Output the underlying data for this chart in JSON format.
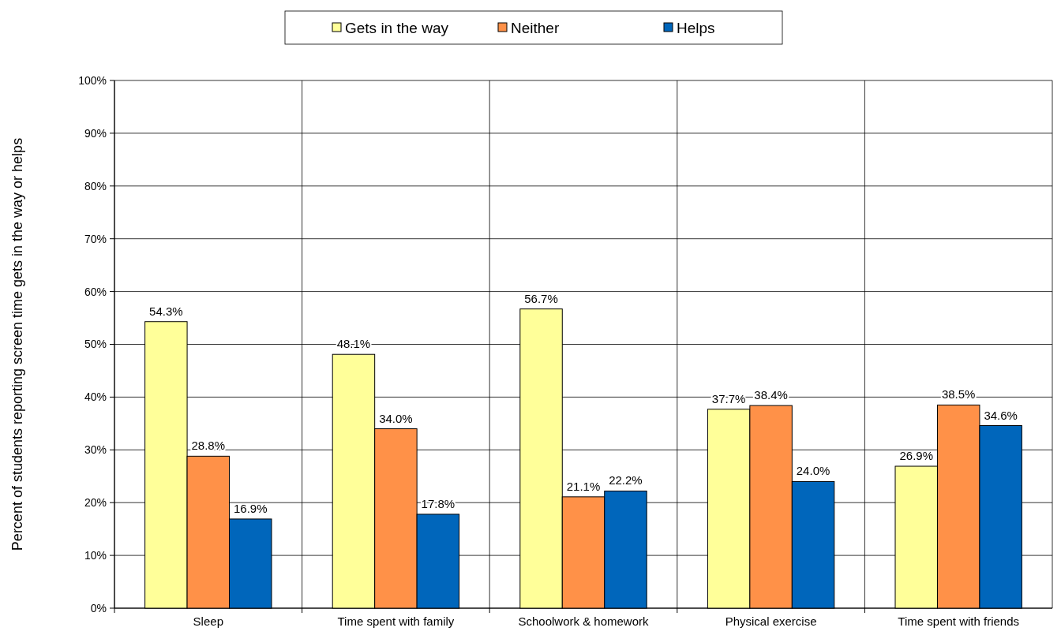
{
  "chart_data": {
    "type": "bar",
    "ylabel": "Percent of students reporting screen time gets in the way or helps",
    "categories": [
      "Sleep",
      "Time spent with family",
      "Schoolwork & homework",
      "Physical exercise",
      "Time spent with friends"
    ],
    "series": [
      {
        "name": "Gets in the way",
        "color": "#ffff99",
        "values": [
          54.3,
          48.1,
          56.7,
          37.7,
          26.9
        ],
        "value_labels": [
          "54.3%",
          "48.1%",
          "56.7%",
          "37.7%",
          "26.9%"
        ]
      },
      {
        "name": "Neither",
        "color": "#ff9148",
        "values": [
          28.8,
          34.0,
          21.1,
          38.4,
          38.5
        ],
        "value_labels": [
          "28.8%",
          "34.0%",
          "21.1%",
          "38.4%",
          "38.5%"
        ]
      },
      {
        "name": "Helps",
        "color": "#0066bb",
        "values": [
          16.9,
          17.8,
          22.2,
          24.0,
          34.6
        ],
        "value_labels": [
          "16.9%",
          "17.8%",
          "22.2%",
          "24.0%",
          "34.6%"
        ]
      }
    ],
    "ylim": [
      0,
      100
    ],
    "yticks": [
      {
        "value": 0,
        "label": "0%"
      },
      {
        "value": 10,
        "label": "10%"
      },
      {
        "value": 20,
        "label": "20%"
      },
      {
        "value": 30,
        "label": "30%"
      },
      {
        "value": 40,
        "label": "40%"
      },
      {
        "value": 50,
        "label": "50%"
      },
      {
        "value": 60,
        "label": "60%"
      },
      {
        "value": 70,
        "label": "70%"
      },
      {
        "value": 80,
        "label": "80%"
      },
      {
        "value": 90,
        "label": "90%"
      },
      {
        "value": 100,
        "label": "100%"
      }
    ],
    "grid": true,
    "legend": "top"
  }
}
